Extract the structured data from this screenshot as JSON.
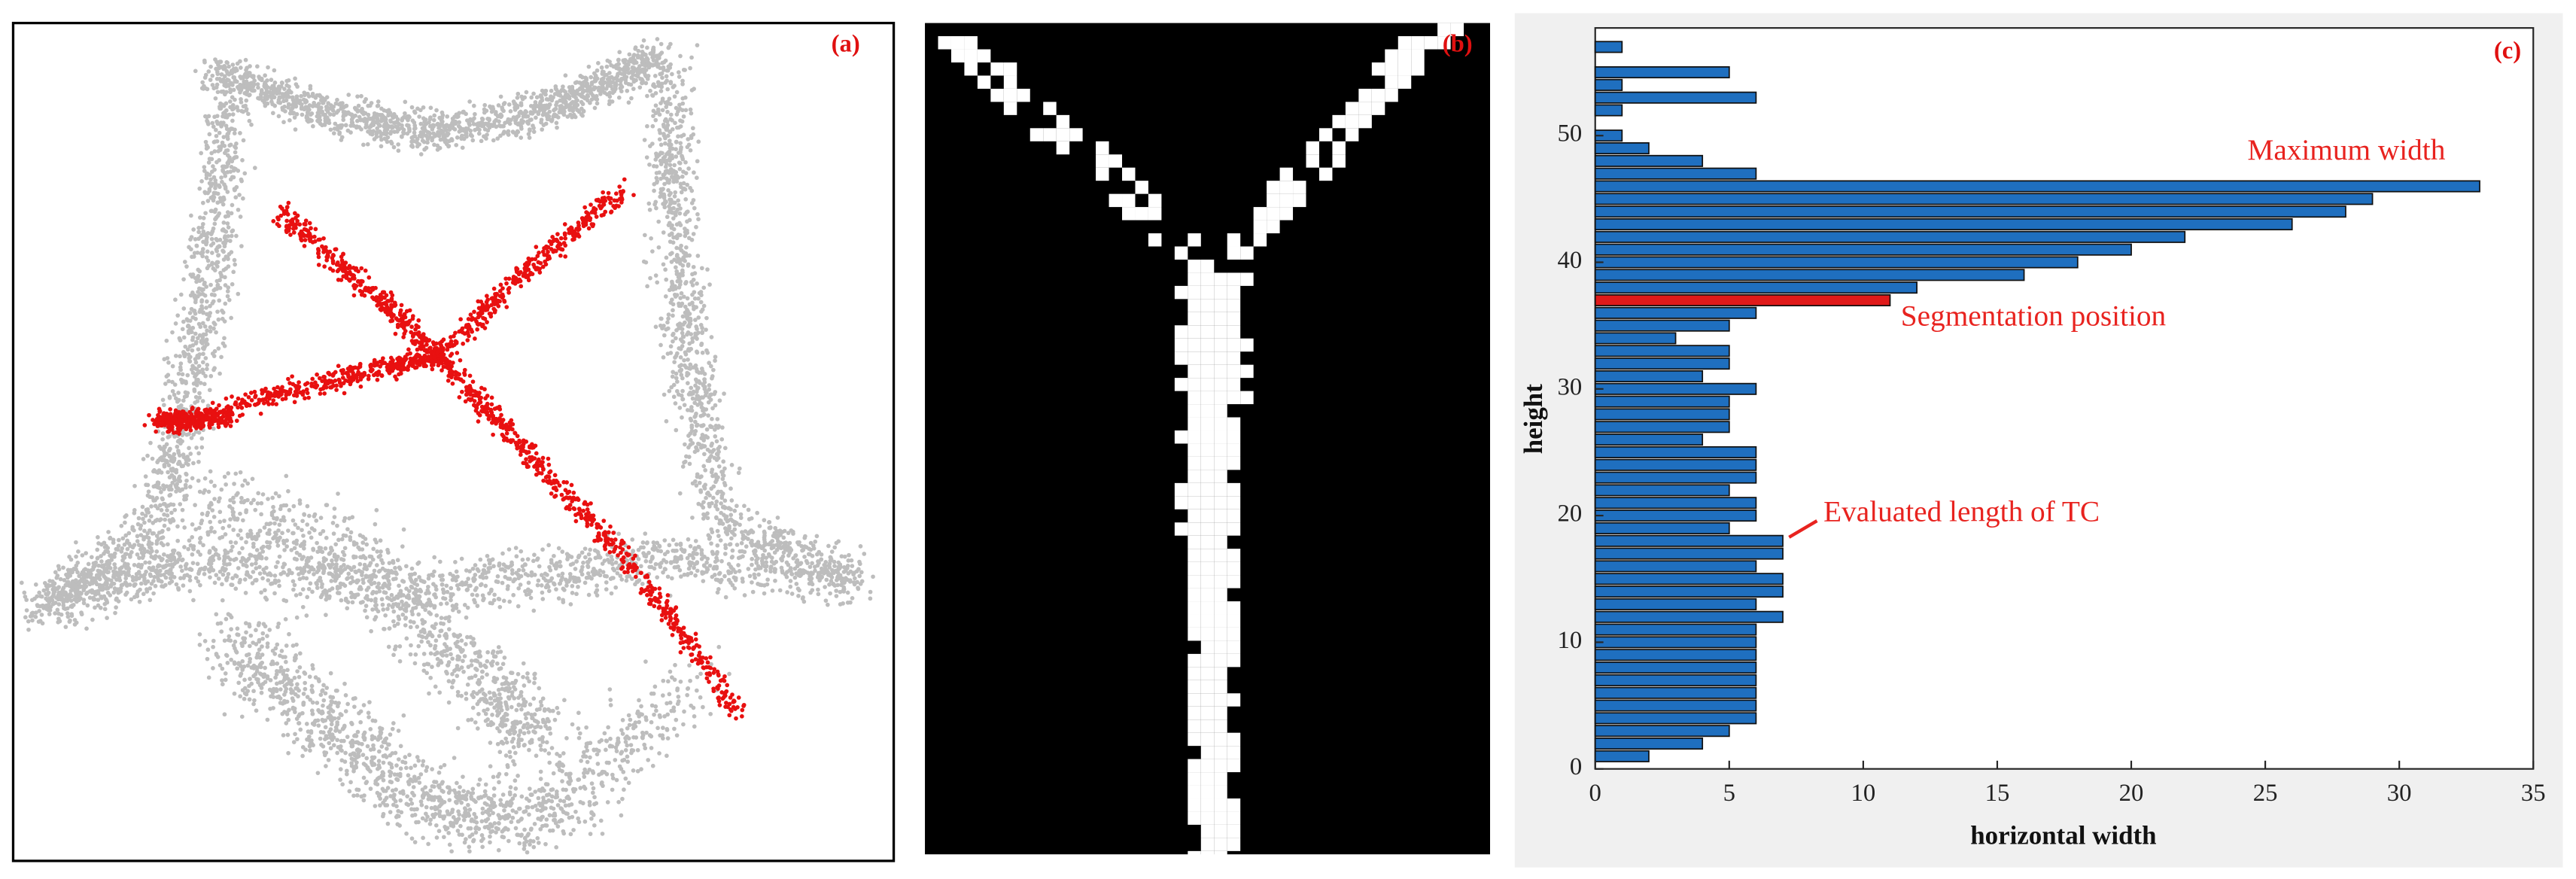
{
  "panels": {
    "a": {
      "label": "(a)"
    },
    "b": {
      "label": "(b)"
    }
  },
  "chart_data": {
    "type": "bar",
    "orientation": "horizontal",
    "panel_label": "(c)",
    "x_label": "horizontal width",
    "y_label": "height",
    "y": [
      57,
      55,
      54,
      53,
      52,
      50,
      49,
      48,
      47,
      46,
      45,
      44,
      43,
      42,
      41,
      40,
      39,
      38,
      37,
      36,
      35,
      34,
      33,
      32,
      31,
      30,
      29,
      28,
      27,
      26,
      25,
      24,
      23,
      22,
      21,
      20,
      19,
      18,
      17,
      16,
      15,
      14,
      13,
      12,
      11,
      10,
      9,
      8,
      7,
      6,
      5,
      4,
      3,
      2,
      1
    ],
    "values": [
      1,
      5,
      1,
      6,
      1,
      1,
      2,
      4,
      6,
      33,
      29,
      28,
      26,
      22,
      20,
      18,
      16,
      12,
      11,
      6,
      5,
      3,
      5,
      5,
      4,
      6,
      5,
      5,
      5,
      4,
      6,
      6,
      6,
      5,
      6,
      6,
      5,
      7,
      7,
      6,
      7,
      7,
      6,
      7,
      6,
      6,
      6,
      6,
      6,
      6,
      6,
      6,
      5,
      4,
      2
    ],
    "colors": [
      "#1f6fbf",
      "#1f6fbf",
      "#1f6fbf",
      "#1f6fbf",
      "#1f6fbf",
      "#1f6fbf",
      "#1f6fbf",
      "#1f6fbf",
      "#1f6fbf",
      "#1f6fbf",
      "#1f6fbf",
      "#1f6fbf",
      "#1f6fbf",
      "#1f6fbf",
      "#1f6fbf",
      "#1f6fbf",
      "#1f6fbf",
      "#1f6fbf",
      "#e01a1a",
      "#1f6fbf",
      "#1f6fbf",
      "#1f6fbf",
      "#1f6fbf",
      "#1f6fbf",
      "#1f6fbf",
      "#1f6fbf",
      "#1f6fbf",
      "#1f6fbf",
      "#1f6fbf",
      "#1f6fbf",
      "#1f6fbf",
      "#1f6fbf",
      "#1f6fbf",
      "#1f6fbf",
      "#1f6fbf",
      "#1f6fbf",
      "#1f6fbf",
      "#1f6fbf",
      "#1f6fbf",
      "#1f6fbf",
      "#1f6fbf",
      "#1f6fbf",
      "#1f6fbf",
      "#1f6fbf",
      "#1f6fbf",
      "#1f6fbf",
      "#1f6fbf",
      "#1f6fbf",
      "#1f6fbf",
      "#1f6fbf",
      "#1f6fbf",
      "#1f6fbf",
      "#1f6fbf",
      "#1f6fbf",
      "#1f6fbf"
    ],
    "xlim": [
      0,
      35
    ],
    "ylim": [
      0,
      58.5
    ],
    "xticks": [
      0,
      5,
      10,
      15,
      20,
      25,
      30,
      35
    ],
    "yticks": [
      0,
      10,
      20,
      30,
      40,
      50
    ],
    "annotations": [
      "Maximum width",
      "Segmentation position",
      "Evaluated length of TC"
    ]
  }
}
